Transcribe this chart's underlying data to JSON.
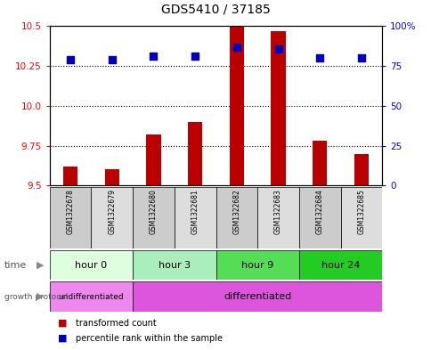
{
  "title": "GDS5410 / 37185",
  "samples": [
    "GSM1322678",
    "GSM1322679",
    "GSM1322680",
    "GSM1322681",
    "GSM1322682",
    "GSM1322683",
    "GSM1322684",
    "GSM1322685"
  ],
  "transformed_count": [
    9.62,
    9.6,
    9.82,
    9.9,
    10.5,
    10.47,
    9.78,
    9.7
  ],
  "percentile_rank": [
    79,
    79,
    81,
    81,
    87,
    86,
    80,
    80
  ],
  "y_min": 9.5,
  "y_max": 10.5,
  "y_ticks_left": [
    9.5,
    9.75,
    10.0,
    10.25,
    10.5
  ],
  "y_ticks_right": [
    0,
    25,
    50,
    75,
    100
  ],
  "percentile_min": 0,
  "percentile_max": 100,
  "bar_color": "#bb0000",
  "dot_color": "#0000bb",
  "time_groups": [
    {
      "label": "hour 0",
      "start": 0,
      "end": 1,
      "color": "#ddffdd"
    },
    {
      "label": "hour 3",
      "start": 2,
      "end": 3,
      "color": "#aaeebb"
    },
    {
      "label": "hour 9",
      "start": 4,
      "end": 5,
      "color": "#55dd55"
    },
    {
      "label": "hour 24",
      "start": 6,
      "end": 7,
      "color": "#22cc22"
    }
  ],
  "proto_undiff": {
    "label": "undifferentiated",
    "start": 0,
    "end": 1,
    "color": "#ee88ee"
  },
  "proto_diff": {
    "label": "differentiated",
    "start": 2,
    "end": 7,
    "color": "#dd55dd"
  },
  "bar_width": 0.35,
  "dot_size": 30,
  "legend_red_label": "transformed count",
  "legend_blue_label": "percentile rank within the sample"
}
